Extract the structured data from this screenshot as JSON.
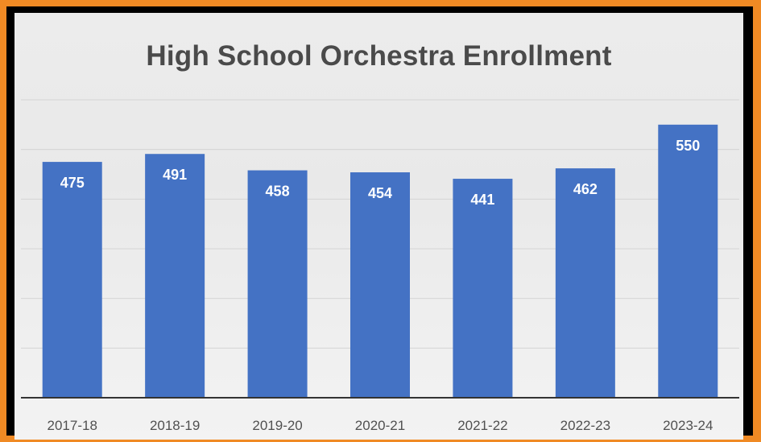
{
  "chart_data": {
    "type": "bar",
    "title": "High School Orchestra Enrollment",
    "xlabel": "",
    "ylabel": "",
    "categories": [
      "2017-18",
      "2018-19",
      "2019-20",
      "2020-21",
      "2021-22",
      "2022-23",
      "2023-24"
    ],
    "values": [
      475,
      491,
      458,
      454,
      441,
      462,
      550
    ],
    "ylim": [
      0,
      600
    ],
    "grid": true,
    "legend": "none",
    "colors": {
      "bar": "#4472c4",
      "frame": "#f08a24",
      "background": "#ececec"
    }
  }
}
